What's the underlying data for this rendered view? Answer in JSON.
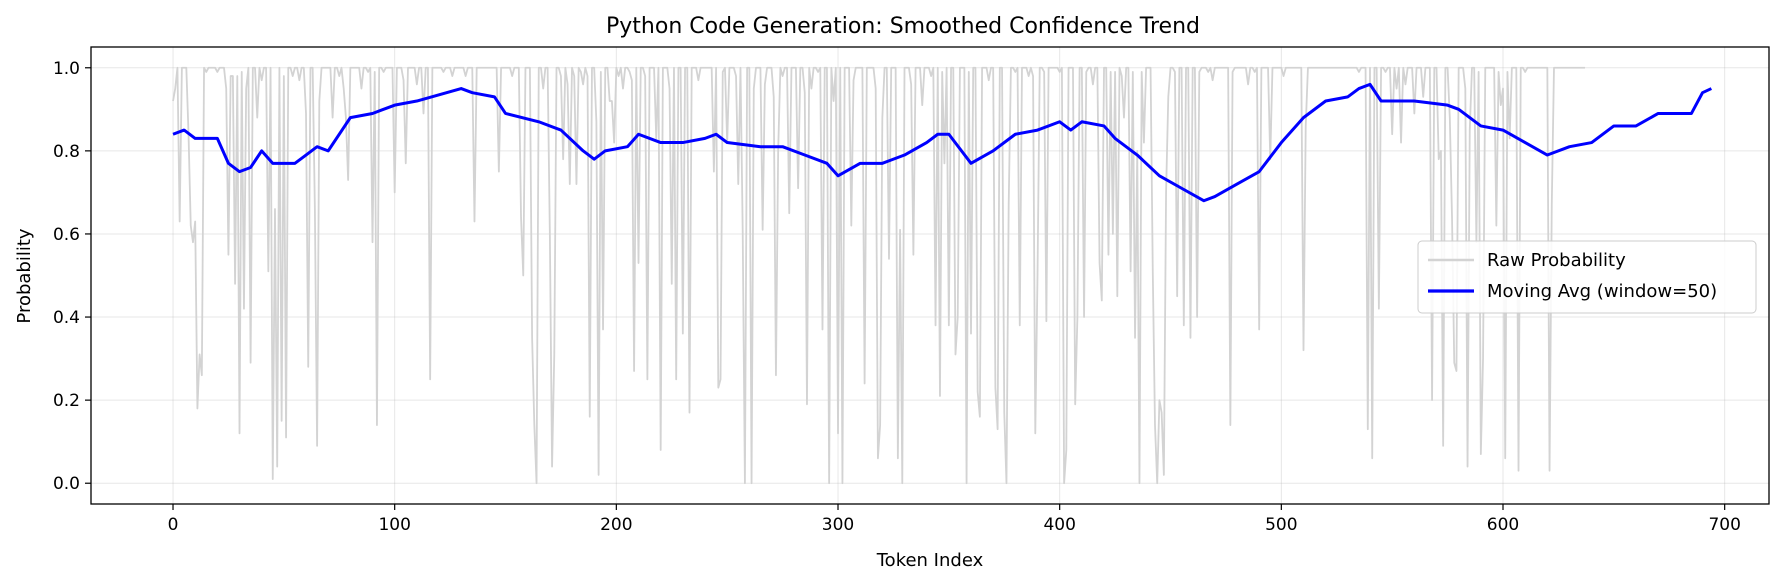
{
  "chart_data": {
    "type": "line",
    "title": "Python Code Generation: Smoothed Confidence Trend",
    "xlabel": "Token Index",
    "ylabel": "Probability",
    "xlim": [
      -37,
      720
    ],
    "ylim": [
      -0.05,
      1.05
    ],
    "xticks": [
      0,
      100,
      200,
      300,
      400,
      500,
      600,
      700
    ],
    "yticks": [
      0.0,
      0.2,
      0.4,
      0.6,
      0.8,
      1.0
    ],
    "xtick_labels": [
      "0",
      "100",
      "200",
      "300",
      "400",
      "500",
      "600",
      "700"
    ],
    "ytick_labels": [
      "0.0",
      "0.2",
      "0.4",
      "0.6",
      "0.8",
      "1.0"
    ],
    "grid": true,
    "legend_position": "center-right",
    "series": [
      {
        "name": "Raw Probability",
        "color": "#d3d3d3",
        "note_n_points": 694,
        "x_start": 0,
        "x_step": 1,
        "values": [
          0.92,
          0.95,
          1.0,
          0.63,
          1.0,
          1.0,
          1.0,
          0.84,
          0.62,
          0.58,
          0.63,
          0.18,
          0.31,
          0.26,
          1.0,
          0.99,
          1.0,
          1.0,
          1.0,
          1.0,
          0.99,
          1.0,
          1.0,
          1.0,
          0.95,
          0.55,
          0.98,
          0.98,
          0.48,
          0.98,
          0.12,
          0.99,
          0.42,
          0.95,
          1.0,
          0.29,
          1.0,
          1.0,
          0.88,
          1.0,
          0.97,
          1.0,
          1.0,
          0.51,
          1.0,
          0.01,
          0.66,
          0.04,
          1.0,
          0.15,
          0.98,
          0.11,
          1.0,
          1.0,
          0.98,
          1.0,
          1.0,
          0.97,
          1.0,
          1.0,
          0.89,
          0.28,
          1.0,
          1.0,
          0.66,
          0.09,
          0.92,
          1.0,
          1.0,
          1.0,
          1.0,
          1.0,
          0.88,
          1.0,
          1.0,
          0.98,
          1.0,
          0.95,
          0.88,
          0.73,
          1.0,
          1.0,
          1.0,
          1.0,
          1.0,
          0.95,
          1.0,
          1.0,
          0.99,
          1.0,
          0.58,
          0.99,
          0.14,
          1.0,
          1.0,
          0.99,
          1.0,
          1.0,
          1.0,
          1.0,
          0.7,
          1.0,
          1.0,
          1.0,
          0.97,
          0.77,
          1.0,
          1.0,
          1.0,
          1.0,
          0.96,
          1.0,
          1.0,
          0.89,
          1.0,
          1.0,
          0.25,
          1.0,
          1.0,
          1.0,
          1.0,
          1.0,
          0.99,
          1.0,
          1.0,
          1.0,
          0.98,
          1.0,
          1.0,
          1.0,
          1.0,
          1.0,
          0.98,
          1.0,
          1.0,
          1.0,
          0.63,
          1.0,
          1.0,
          1.0,
          1.0,
          1.0,
          1.0,
          1.0,
          1.0,
          1.0,
          1.0,
          0.75,
          1.0,
          1.0,
          1.0,
          1.0,
          1.0,
          0.98,
          1.0,
          1.0,
          1.0,
          0.64,
          0.5,
          1.0,
          1.0,
          1.0,
          0.35,
          0.14,
          0.0,
          1.0,
          1.0,
          0.95,
          1.0,
          1.0,
          0.6,
          0.04,
          0.31,
          1.0,
          1.0,
          0.98,
          0.78,
          1.0,
          0.96,
          0.72,
          1.0,
          0.98,
          0.72,
          1.0,
          0.99,
          0.96,
          1.0,
          0.98,
          0.16,
          1.0,
          1.0,
          0.87,
          0.02,
          0.99,
          0.37,
          1.0,
          1.0,
          0.92,
          0.92,
          0.82,
          1.0,
          0.98,
          1.0,
          0.95,
          1.0,
          1.0,
          0.99,
          0.97,
          0.27,
          1.0,
          0.53,
          1.0,
          1.0,
          0.98,
          0.25,
          1.0,
          1.0,
          1.0,
          0.83,
          1.0,
          0.08,
          1.0,
          1.0,
          1.0,
          0.95,
          0.48,
          1.0,
          0.25,
          1.0,
          1.0,
          0.36,
          1.0,
          1.0,
          0.17,
          1.0,
          1.0,
          1.0,
          0.97,
          1.0,
          1.0,
          1.0,
          1.0,
          1.0,
          1.0,
          0.75,
          1.0,
          0.23,
          0.25,
          0.99,
          1.0,
          0.82,
          1.0,
          1.0,
          1.0,
          0.98,
          0.72,
          1.0,
          0.61,
          0.0,
          1.0,
          1.0,
          0.0,
          0.95,
          1.0,
          1.0,
          1.0,
          0.61,
          0.96,
          1.0,
          1.0,
          1.0,
          0.93,
          0.26,
          0.8,
          1.0,
          0.98,
          1.0,
          1.0,
          0.65,
          1.0,
          1.0,
          1.0,
          0.71,
          1.0,
          1.0,
          0.94,
          0.19,
          1.0,
          0.95,
          1.0,
          1.0,
          0.99,
          1.0,
          0.37,
          1.0,
          1.0,
          0.0,
          1.0,
          0.92,
          1.0,
          0.12,
          1.0,
          0.0,
          1.0,
          1.0,
          1.0,
          0.62,
          0.97,
          1.0,
          1.0,
          1.0,
          1.0,
          0.24,
          1.0,
          1.0,
          1.0,
          1.0,
          0.95,
          0.06,
          0.14,
          0.88,
          1.0,
          1.0,
          0.54,
          1.0,
          1.0,
          1.0,
          0.06,
          0.61,
          0.0,
          1.0,
          1.0,
          1.0,
          0.96,
          0.55,
          1.0,
          1.0,
          1.0,
          0.91,
          1.0,
          1.0,
          1.0,
          0.98,
          1.0,
          0.38,
          1.0,
          0.21,
          0.99,
          0.77,
          1.0,
          0.38,
          1.0,
          1.0,
          0.31,
          0.4,
          1.0,
          1.0,
          1.0,
          0.0,
          0.99,
          0.36,
          1.0,
          1.0,
          0.22,
          0.16,
          1.0,
          1.0,
          1.0,
          0.97,
          1.0,
          1.0,
          0.23,
          0.13,
          1.0,
          1.0,
          0.17,
          0.0,
          0.67,
          1.0,
          1.0,
          0.99,
          1.0,
          0.38,
          1.0,
          1.0,
          1.0,
          0.98,
          1.0,
          0.98,
          0.12,
          0.5,
          1.0,
          1.0,
          0.99,
          0.39,
          1.0,
          1.0,
          1.0,
          1.0,
          1.0,
          0.99,
          1.0,
          0.0,
          0.08,
          1.0,
          1.0,
          1.0,
          0.19,
          0.4,
          1.0,
          1.0,
          0.4,
          0.99,
          1.0,
          1.0,
          0.96,
          1.0,
          1.0,
          0.53,
          0.44,
          1.0,
          1.0,
          0.55,
          0.99,
          0.6,
          0.99,
          0.45,
          1.0,
          0.98,
          0.88,
          1.0,
          1.0,
          0.51,
          0.99,
          0.35,
          0.8,
          0.0,
          0.99,
          0.82,
          1.0,
          1.0,
          1.0,
          0.51,
          0.14,
          0.0,
          0.2,
          0.17,
          0.02,
          0.7,
          0.93,
          1.0,
          1.0,
          0.99,
          0.45,
          1.0,
          1.0,
          0.38,
          1.0,
          1.0,
          0.35,
          1.0,
          1.0,
          0.4,
          0.99,
          1.0,
          1.0,
          1.0,
          0.99,
          1.0,
          0.97,
          1.0,
          1.0,
          1.0,
          1.0,
          1.0,
          1.0,
          1.0,
          0.14,
          0.99,
          1.0,
          1.0,
          1.0,
          1.0,
          1.0,
          1.0,
          0.96,
          1.0,
          1.0,
          0.99,
          1.0,
          0.37,
          1.0,
          1.0,
          1.0,
          1.0,
          0.78,
          1.0,
          1.0,
          1.0,
          1.0,
          1.0,
          0.98,
          1.0,
          1.0,
          1.0,
          1.0,
          1.0,
          1.0,
          1.0,
          1.0,
          0.32,
          0.86,
          1.0,
          1.0,
          1.0,
          1.0,
          1.0,
          1.0,
          1.0,
          1.0,
          1.0,
          1.0,
          1.0,
          1.0,
          1.0,
          1.0,
          1.0,
          1.0,
          1.0,
          1.0,
          1.0,
          1.0,
          1.0,
          1.0,
          1.0,
          0.99,
          1.0,
          1.0,
          1.0,
          0.13,
          1.0,
          0.06,
          1.0,
          1.0,
          0.42,
          1.0,
          1.0,
          0.99,
          1.0,
          1.0,
          0.84,
          1.0,
          0.95,
          1.0,
          0.82,
          1.0,
          0.96,
          1.0,
          1.0,
          1.0,
          0.89,
          1.0,
          1.0,
          1.0,
          0.93,
          1.0,
          1.0,
          1.0,
          0.2,
          1.0,
          1.0,
          0.78,
          0.8,
          0.09,
          1.0,
          1.0,
          0.88,
          0.64,
          0.29,
          0.27,
          1.0,
          1.0,
          1.0,
          0.95,
          0.04,
          0.85,
          1.0,
          1.0,
          0.58,
          0.99,
          0.07,
          0.3,
          1.0,
          1.0,
          1.0,
          1.0,
          1.0,
          0.62,
          0.99,
          0.91,
          0.95,
          0.06,
          0.99,
          0.83,
          1.0,
          1.0,
          1.0,
          0.03,
          1.0,
          1.0,
          0.99,
          1.0,
          1.0,
          1.0,
          1.0,
          1.0,
          1.0,
          1.0,
          1.0,
          1.0,
          1.0,
          0.03,
          0.67,
          1.0,
          1.0,
          1.0,
          1.0,
          1.0,
          1.0,
          1.0,
          1.0,
          1.0,
          1.0,
          1.0,
          1.0,
          1.0,
          1.0,
          1.0
        ]
      },
      {
        "name": "Moving Avg (window=50)",
        "color": "#0000ff",
        "x": [
          0,
          5,
          10,
          20,
          25,
          30,
          35,
          40,
          45,
          55,
          60,
          65,
          70,
          80,
          90,
          100,
          110,
          130,
          135,
          145,
          150,
          165,
          175,
          185,
          190,
          195,
          205,
          210,
          220,
          230,
          240,
          245,
          250,
          265,
          275,
          285,
          295,
          300,
          310,
          320,
          330,
          340,
          345,
          350,
          360,
          370,
          380,
          390,
          400,
          405,
          410,
          420,
          425,
          435,
          445,
          455,
          465,
          470,
          480,
          490,
          500,
          510,
          520,
          530,
          535,
          540,
          545,
          560,
          575,
          580,
          590,
          600,
          610,
          620,
          630,
          640,
          650,
          660,
          670,
          685,
          690,
          694
        ],
        "y": [
          0.84,
          0.85,
          0.83,
          0.83,
          0.77,
          0.75,
          0.76,
          0.8,
          0.77,
          0.77,
          0.79,
          0.81,
          0.8,
          0.88,
          0.89,
          0.91,
          0.92,
          0.95,
          0.94,
          0.93,
          0.89,
          0.87,
          0.85,
          0.8,
          0.78,
          0.8,
          0.81,
          0.84,
          0.82,
          0.82,
          0.83,
          0.84,
          0.82,
          0.81,
          0.81,
          0.79,
          0.77,
          0.74,
          0.77,
          0.77,
          0.79,
          0.82,
          0.84,
          0.84,
          0.77,
          0.8,
          0.84,
          0.85,
          0.87,
          0.85,
          0.87,
          0.86,
          0.83,
          0.79,
          0.74,
          0.71,
          0.68,
          0.69,
          0.72,
          0.75,
          0.82,
          0.88,
          0.92,
          0.93,
          0.95,
          0.96,
          0.92,
          0.92,
          0.91,
          0.9,
          0.86,
          0.85,
          0.82,
          0.79,
          0.81,
          0.82,
          0.86,
          0.86,
          0.89,
          0.89,
          0.94,
          0.95
        ]
      }
    ]
  }
}
